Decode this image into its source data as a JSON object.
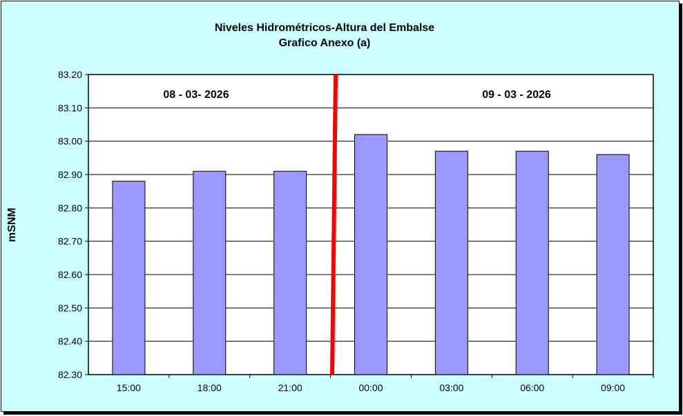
{
  "chart_data": {
    "type": "bar",
    "title": "Niveles Hidrométricos-Altura del Embalse",
    "subtitle": "Grafico Anexo (a)",
    "xlabel": "",
    "ylabel": "mSNM",
    "categories": [
      "15:00",
      "18:00",
      "21:00",
      "00:00",
      "03:00",
      "06:00",
      "09:00"
    ],
    "values": [
      82.88,
      82.91,
      82.91,
      83.02,
      82.97,
      82.97,
      82.96
    ],
    "ylim": [
      82.3,
      83.2
    ],
    "yticks": [
      "82.30",
      "82.40",
      "82.50",
      "82.60",
      "82.70",
      "82.80",
      "82.90",
      "83.00",
      "83.10",
      "83.20"
    ],
    "grid": true,
    "annotations": [
      {
        "text": "08 - 03- 2026"
      },
      {
        "text": "09 - 03 - 2026"
      }
    ],
    "colors": {
      "bar": "#9999FF",
      "divider": "#FF0000",
      "background": "#CCFFFF",
      "plot": "#FFFFFF"
    }
  }
}
